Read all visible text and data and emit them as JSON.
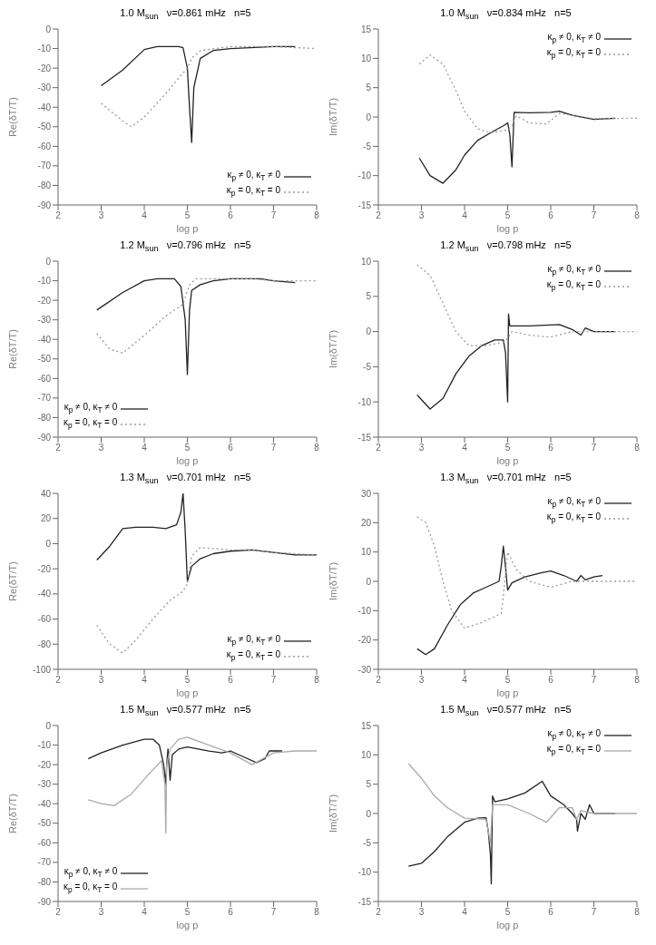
{
  "chart_data": [
    {
      "type": "line",
      "title": "1.0 M$_{sun}$   ν=0.861 mHz   n=5",
      "xlabel": "log p",
      "ylabel": "Re(δT/T)",
      "xlim": [
        2,
        8
      ],
      "xticks": [
        2,
        3,
        4,
        5,
        6,
        7,
        8
      ],
      "ylim": [
        -90,
        0
      ],
      "yticks": [
        -90,
        -80,
        -70,
        -60,
        -50,
        -40,
        -30,
        -20,
        -10,
        0
      ],
      "legend": "bottom right",
      "series": [
        {
          "name": "κ$_{p}$ ≠ 0, κ$_{T}$ ≠ 0",
          "color": "#222222",
          "line_style": "solid",
          "x": [
            3,
            3.5,
            4,
            4.3,
            4.8,
            4.9,
            5,
            5.05,
            5.1,
            5.15,
            5.3,
            5.6,
            6,
            7,
            7.5
          ],
          "values": [
            -29,
            -21,
            -10.5,
            -9,
            -9,
            -9.6,
            -20,
            -40,
            -58,
            -30,
            -15,
            -11,
            -10,
            -9,
            -9
          ]
        },
        {
          "name": "κ$_{p}$ = 0, κ$_{T}$ = 0",
          "color": "#999999",
          "line_style": "dotted",
          "x": [
            3,
            3.5,
            3.7,
            4,
            4.5,
            4.8,
            5,
            5.1,
            5.3,
            6,
            7,
            8
          ],
          "values": [
            -38,
            -47,
            -50,
            -45,
            -33,
            -25,
            -20,
            -15,
            -11,
            -9,
            -9,
            -10
          ]
        }
      ]
    },
    {
      "type": "line",
      "title": "1.0 M$_{sun}$   ν=0.834 mHz   n=5",
      "xlabel": "log p",
      "ylabel": "Im(δT/T)",
      "xlim": [
        2,
        8
      ],
      "xticks": [
        2,
        3,
        4,
        5,
        6,
        7,
        8
      ],
      "ylim": [
        -15,
        15
      ],
      "yticks": [
        -15,
        -10,
        -5,
        0,
        5,
        10,
        15
      ],
      "legend": "top right",
      "series": [
        {
          "name": "κ$_{p}$ ≠ 0, κ$_{T}$ ≠ 0",
          "color": "#222222",
          "line_style": "solid",
          "x": [
            2.95,
            3.2,
            3.5,
            3.8,
            4,
            4.3,
            4.6,
            4.9,
            5,
            5.05,
            5.1,
            5.15,
            5.5,
            6,
            6.2,
            6.5,
            7,
            7.5
          ],
          "values": [
            -7,
            -10,
            -11.3,
            -9,
            -6.5,
            -4,
            -2.7,
            -1.5,
            -1,
            -3,
            -8.5,
            0.8,
            0.7,
            0.8,
            1,
            0.3,
            -0.4,
            -0.2
          ]
        },
        {
          "name": "κ$_{p}$ = 0, κ$_{T}$ = 0",
          "color": "#999999",
          "line_style": "dotted",
          "x": [
            2.95,
            3.2,
            3.5,
            3.8,
            4,
            4.3,
            4.6,
            5,
            5.1,
            5.2,
            5.5,
            5.9,
            6.2,
            6.5,
            7,
            8
          ],
          "values": [
            9,
            10.6,
            9,
            4.5,
            1,
            -2,
            -2.7,
            -2.2,
            -1.5,
            0.2,
            -1,
            -1.2,
            0.6,
            0.3,
            -0.3,
            -0.2
          ]
        }
      ]
    },
    {
      "type": "line",
      "title": "1.2 M$_{sun}$   ν=0.796 mHz   n=5",
      "xlabel": "log p",
      "ylabel": "Re(δT/T)",
      "xlim": [
        2,
        8
      ],
      "xticks": [
        2,
        3,
        4,
        5,
        6,
        7,
        8
      ],
      "ylim": [
        -90,
        0
      ],
      "yticks": [
        -90,
        -80,
        -70,
        -60,
        -50,
        -40,
        -30,
        -20,
        -10,
        0
      ],
      "legend": "bottom left",
      "series": [
        {
          "name": "κ$_{p}$ ≠ 0, κ$_{T}$ ≠ 0",
          "color": "#222222",
          "line_style": "solid",
          "x": [
            2.9,
            3.5,
            4,
            4.3,
            4.7,
            4.85,
            4.95,
            5,
            5.05,
            5.1,
            5.3,
            5.6,
            6,
            6.7,
            7,
            7.5
          ],
          "values": [
            -25,
            -16,
            -10,
            -9,
            -9,
            -13,
            -30,
            -58,
            -25,
            -15,
            -12,
            -10,
            -9,
            -9,
            -10,
            -11
          ]
        },
        {
          "name": "κ$_{p}$ = 0, κ$_{T}$ = 0",
          "color": "#999999",
          "line_style": "dotted",
          "x": [
            2.9,
            3.2,
            3.5,
            4,
            4.5,
            4.9,
            5.05,
            5.2,
            6,
            6.5,
            7,
            8
          ],
          "values": [
            -37,
            -45,
            -47,
            -38,
            -28,
            -22,
            -12,
            -9,
            -9,
            -9,
            -10,
            -10
          ]
        }
      ]
    },
    {
      "type": "line",
      "title": "1.2 M$_{sun}$   ν=0.798 mHz   n=5",
      "xlabel": "log p",
      "ylabel": "Im(δT/T)",
      "xlim": [
        2,
        8
      ],
      "xticks": [
        2,
        3,
        4,
        5,
        6,
        7,
        8
      ],
      "ylim": [
        -15,
        10
      ],
      "yticks": [
        -15,
        -10,
        -5,
        0,
        5,
        10
      ],
      "legend": "top right",
      "series": [
        {
          "name": "κ$_{p}$ ≠ 0, κ$_{T}$ ≠ 0",
          "color": "#222222",
          "line_style": "solid",
          "x": [
            2.9,
            3.2,
            3.5,
            3.8,
            4.1,
            4.4,
            4.7,
            4.9,
            4.95,
            5,
            5.02,
            5.05,
            5.5,
            6.2,
            6.5,
            6.7,
            6.8,
            7,
            7.5
          ],
          "values": [
            -9,
            -11,
            -9.5,
            -6,
            -3.5,
            -2,
            -1.2,
            -1.2,
            -3,
            -10,
            2.5,
            0.8,
            0.8,
            1,
            0.3,
            -0.5,
            0.5,
            0,
            0
          ]
        },
        {
          "name": "κ$_{p}$ = 0, κ$_{T}$ = 0",
          "color": "#999999",
          "line_style": "dotted",
          "x": [
            2.9,
            3.2,
            3.5,
            3.8,
            4.1,
            4.5,
            4.9,
            5,
            5.1,
            5.5,
            6,
            6.5,
            7,
            8
          ],
          "values": [
            9.5,
            8,
            4,
            0,
            -2,
            -2,
            -1.5,
            -1,
            0,
            -0.5,
            -0.8,
            0,
            0,
            0
          ]
        }
      ]
    },
    {
      "type": "line",
      "title": "1.3 M$_{sun}$   ν=0.701 mHz   n=5",
      "xlabel": "log p",
      "ylabel": "Re(δT/T)",
      "xlim": [
        2,
        8
      ],
      "xticks": [
        2,
        3,
        4,
        5,
        6,
        7,
        8
      ],
      "ylim": [
        -100,
        40
      ],
      "yticks": [
        -100,
        -80,
        -60,
        -40,
        -20,
        0,
        20,
        40
      ],
      "legend": "bottom right",
      "series": [
        {
          "name": "κ$_{p}$ ≠ 0, κ$_{T}$ ≠ 0",
          "color": "#222222",
          "line_style": "solid",
          "x": [
            2.9,
            3.2,
            3.5,
            3.8,
            4.2,
            4.5,
            4.75,
            4.85,
            4.9,
            4.95,
            5,
            5.1,
            5.3,
            5.6,
            6,
            6.5,
            7,
            7.5,
            8
          ],
          "values": [
            -13,
            -2,
            12,
            13,
            13,
            12,
            15,
            25,
            40,
            10,
            -30,
            -18,
            -12,
            -8,
            -6,
            -5,
            -7,
            -9,
            -9
          ]
        },
        {
          "name": "κ$_{p}$ = 0, κ$_{T}$ = 0",
          "color": "#999999",
          "line_style": "dotted",
          "x": [
            2.9,
            3.2,
            3.5,
            3.8,
            4.2,
            4.6,
            4.9,
            5,
            5.1,
            5.3,
            5.6,
            6,
            6.5,
            7,
            8
          ],
          "values": [
            -65,
            -80,
            -87,
            -77,
            -60,
            -45,
            -38,
            -32,
            -10,
            -3,
            -4,
            -5,
            -5,
            -7,
            -9
          ]
        }
      ]
    },
    {
      "type": "line",
      "title": "1.3 M$_{sun}$   ν=0.701 mHz   n=5",
      "xlabel": "log p",
      "ylabel": "Im(δT/T)",
      "xlim": [
        2,
        8
      ],
      "xticks": [
        2,
        3,
        4,
        5,
        6,
        7,
        8
      ],
      "ylim": [
        -30,
        30
      ],
      "yticks": [
        -30,
        -20,
        -10,
        0,
        10,
        20,
        30
      ],
      "legend": "top right",
      "series": [
        {
          "name": "κ$_{p}$ ≠ 0, κ$_{T}$ ≠ 0",
          "color": "#222222",
          "line_style": "solid",
          "x": [
            2.9,
            3.1,
            3.3,
            3.6,
            3.9,
            4.2,
            4.5,
            4.8,
            4.85,
            4.9,
            4.95,
            5,
            5.1,
            5.4,
            5.8,
            6,
            6.3,
            6.6,
            6.7,
            6.8,
            7,
            7.2
          ],
          "values": [
            -23,
            -25,
            -23,
            -15,
            -8,
            -4,
            -2,
            0,
            5,
            12,
            5,
            -3,
            -0.5,
            1.5,
            3,
            3.5,
            2,
            0,
            2,
            0.5,
            1.5,
            2
          ]
        },
        {
          "name": "κ$_{p}$ = 0, κ$_{T}$ = 0",
          "color": "#999999",
          "line_style": "dotted",
          "x": [
            2.9,
            3.1,
            3.3,
            3.5,
            3.7,
            4,
            4.4,
            4.85,
            4.9,
            5,
            5.2,
            5.5,
            6,
            6.5,
            7,
            8
          ],
          "values": [
            22,
            20,
            12,
            0,
            -10,
            -16,
            -14,
            -11,
            -5,
            10,
            4,
            0,
            -2,
            0,
            0,
            0
          ]
        }
      ]
    },
    {
      "type": "line",
      "title": "1.5 M$_{sun}$   ν=0.577 mHz   n=5",
      "xlabel": "log p",
      "ylabel": "Re(δT/T)",
      "xlim": [
        2,
        8
      ],
      "xticks": [
        2,
        3,
        4,
        5,
        6,
        7,
        8
      ],
      "ylim": [
        -90,
        0
      ],
      "yticks": [
        -90,
        -80,
        -70,
        -60,
        -50,
        -40,
        -30,
        -20,
        -10,
        0
      ],
      "legend": "bottom left",
      "series": [
        {
          "name": "κ$_{p}$ ≠ 0, κ$_{T}$ ≠ 0",
          "color": "#222222",
          "line_style": "solid",
          "x": [
            2.7,
            3,
            3.5,
            4,
            4.2,
            4.35,
            4.45,
            4.5,
            4.52,
            4.55,
            4.6,
            4.65,
            4.8,
            5,
            5.5,
            5.8,
            6,
            6.3,
            6.6,
            6.8,
            6.9,
            7.2
          ],
          "values": [
            -17,
            -14,
            -10,
            -7,
            -7,
            -10,
            -20,
            -30,
            -20,
            -12,
            -28,
            -15,
            -12,
            -11,
            -13,
            -14,
            -13,
            -16,
            -19,
            -17,
            -13,
            -13
          ]
        },
        {
          "name": "κ$_{p}$ = 0, κ$_{T}$ = 0",
          "color": "#aaaaaa",
          "line_style": "solid",
          "x": [
            2.7,
            3,
            3.3,
            3.7,
            4.1,
            4.4,
            4.48,
            4.5,
            4.52,
            4.6,
            4.8,
            5,
            5.5,
            6,
            6.5,
            7,
            7.5,
            8
          ],
          "values": [
            -38,
            -40,
            -41,
            -35,
            -25,
            -18,
            -30,
            -55,
            -20,
            -12,
            -7,
            -6,
            -10,
            -14,
            -20,
            -14,
            -13,
            -13
          ]
        }
      ]
    },
    {
      "type": "line",
      "title": "1.5 M$_{sun}$   ν=0.577 mHz   n=5",
      "xlabel": "log p",
      "ylabel": "Im(δT/T)",
      "xlim": [
        2,
        8
      ],
      "xticks": [
        2,
        3,
        4,
        5,
        6,
        7,
        8
      ],
      "ylim": [
        -15,
        15
      ],
      "yticks": [
        -15,
        -10,
        -5,
        0,
        5,
        10,
        15
      ],
      "legend": "top right",
      "series": [
        {
          "name": "κ$_{p}$ ≠ 0, κ$_{T}$ ≠ 0",
          "color": "#222222",
          "line_style": "solid",
          "x": [
            2.7,
            3,
            3.3,
            3.6,
            4,
            4.3,
            4.5,
            4.55,
            4.6,
            4.62,
            4.65,
            4.7,
            5,
            5.4,
            5.8,
            6,
            6.3,
            6.5,
            6.6,
            6.62,
            6.7,
            6.8,
            6.9,
            7,
            7.5
          ],
          "values": [
            -9,
            -8.5,
            -6.5,
            -4,
            -1.5,
            -0.8,
            -0.7,
            -3,
            -7,
            -12,
            3,
            2,
            2.5,
            3.5,
            5.5,
            3,
            1.5,
            0,
            -1,
            -3,
            0,
            -1,
            1.5,
            0,
            0
          ]
        },
        {
          "name": "κ$_{p}$ = 0, κ$_{T}$ = 0",
          "color": "#aaaaaa",
          "line_style": "solid",
          "x": [
            2.7,
            3,
            3.3,
            3.6,
            4,
            4.5,
            4.6,
            4.65,
            5,
            5.5,
            5.9,
            6.2,
            6.5,
            6.6,
            6.7,
            7,
            8
          ],
          "values": [
            8.5,
            6,
            3,
            1,
            -0.8,
            -1,
            -5,
            1.5,
            1.5,
            0,
            -1.5,
            1,
            1,
            -1,
            0.5,
            0,
            0
          ]
        }
      ]
    }
  ]
}
